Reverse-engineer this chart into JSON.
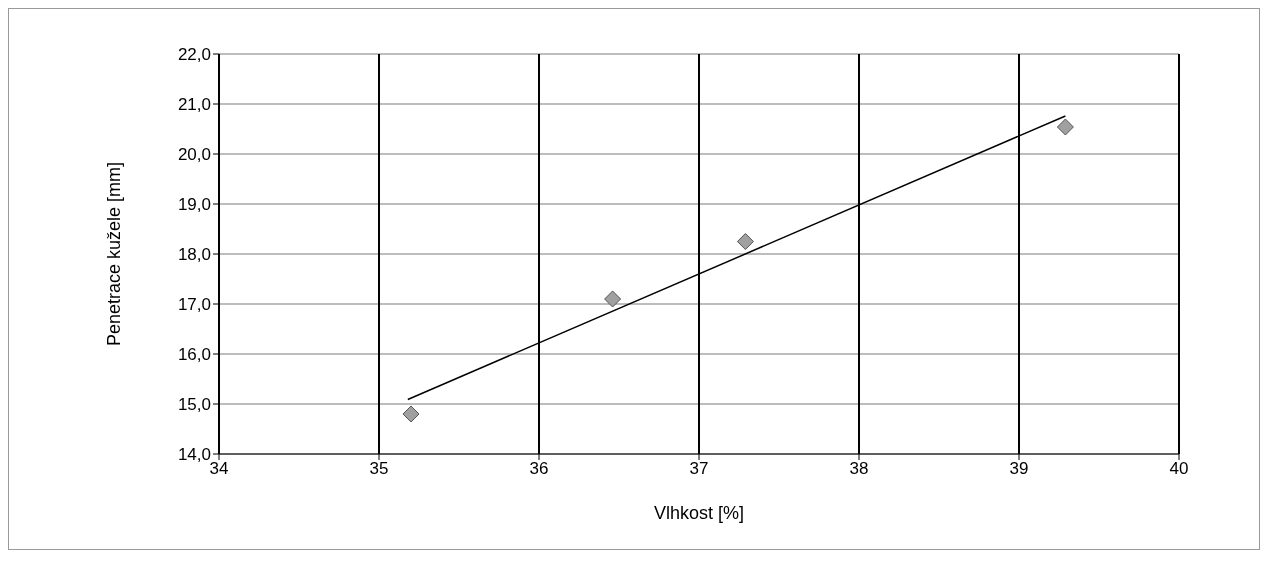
{
  "chart_data": {
    "type": "scatter",
    "xlabel": "Vlhkost [%]",
    "ylabel": "Penetrace kužele [mm]",
    "series": [
      {
        "color": "#a0a0a0",
        "x": [
          35.2,
          36.46,
          37.29,
          39.29
        ],
        "values": [
          14.8,
          17.1,
          18.25,
          20.54
        ],
        "marker": "diamond"
      },
      {
        "type": "line",
        "color": "#000000",
        "x": [
          35.18,
          39.29
        ],
        "values": [
          15.09,
          20.76
        ],
        "marker": "none"
      }
    ],
    "xlim": [
      34,
      40
    ],
    "xticks": [
      34,
      35,
      36,
      37,
      38,
      39,
      40
    ],
    "ylim": [
      14,
      22
    ],
    "yticks": [
      {
        "value": 14,
        "label": "14,0"
      },
      {
        "value": 15,
        "label": "15,0"
      },
      {
        "value": 16,
        "label": "16,0"
      },
      {
        "value": 17,
        "label": "17,0"
      },
      {
        "value": 18,
        "label": "18,0"
      },
      {
        "value": 19,
        "label": "19,0"
      },
      {
        "value": 20,
        "label": "20,0"
      },
      {
        "value": 21,
        "label": "21,0"
      },
      {
        "value": 22,
        "label": "22,0"
      }
    ],
    "grid": true,
    "legend": false
  }
}
